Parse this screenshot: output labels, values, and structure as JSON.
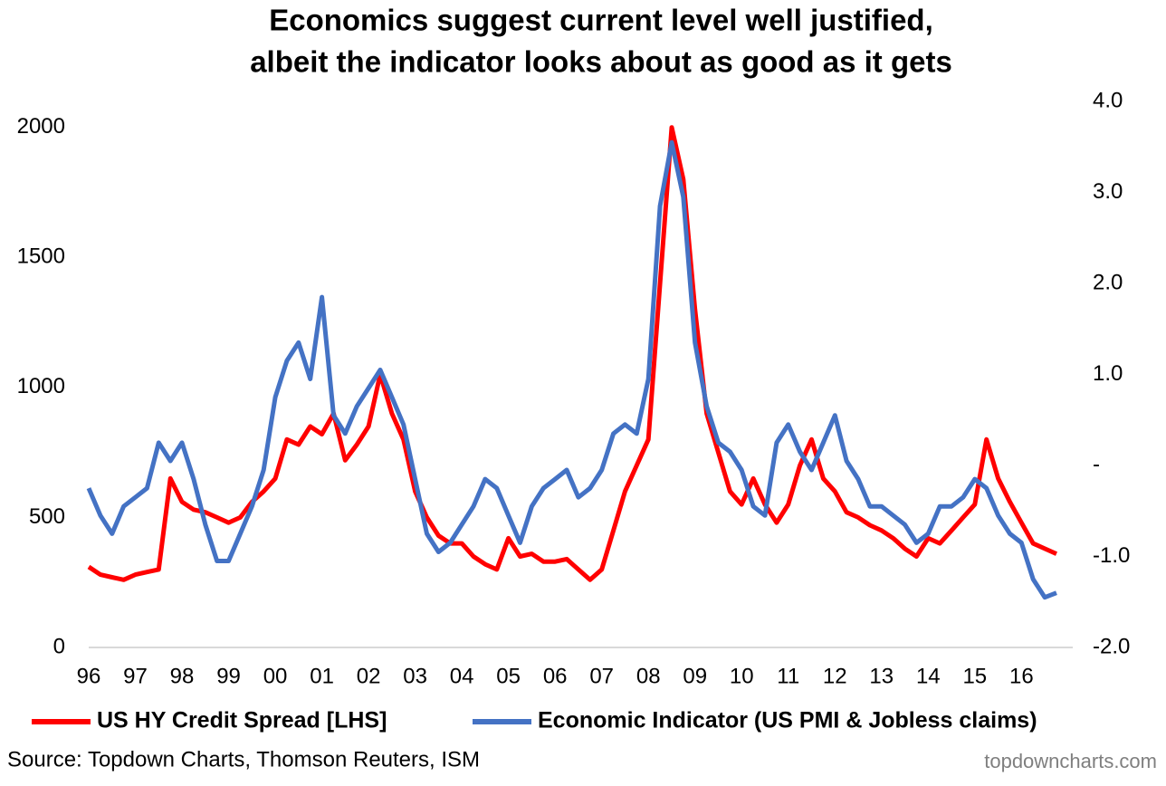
{
  "chart_data": {
    "type": "line",
    "title": [
      "Economics suggest current level well justified,",
      "albeit the indicator looks about as good as it gets"
    ],
    "source": "Source: Topdown Charts, Thomson Reuters, ISM",
    "watermark": "topdowncharts.com",
    "x": [
      1996,
      1996.25,
      1996.5,
      1996.75,
      1997,
      1997.25,
      1997.5,
      1997.75,
      1998,
      1998.25,
      1998.5,
      1998.75,
      1999,
      1999.25,
      1999.5,
      1999.75,
      2000,
      2000.25,
      2000.5,
      2000.75,
      2001,
      2001.25,
      2001.5,
      2001.75,
      2002,
      2002.25,
      2002.5,
      2002.75,
      2003,
      2003.25,
      2003.5,
      2003.75,
      2004,
      2004.25,
      2004.5,
      2004.75,
      2005,
      2005.25,
      2005.5,
      2005.75,
      2006,
      2006.25,
      2006.5,
      2006.75,
      2007,
      2007.25,
      2007.5,
      2007.75,
      2008,
      2008.25,
      2008.5,
      2008.75,
      2009,
      2009.25,
      2009.5,
      2009.75,
      2010,
      2010.25,
      2010.5,
      2010.75,
      2011,
      2011.25,
      2011.5,
      2011.75,
      2012,
      2012.25,
      2012.5,
      2012.75,
      2013,
      2013.25,
      2013.5,
      2013.75,
      2014,
      2014.25,
      2014.5,
      2014.75,
      2015,
      2015.25,
      2015.5,
      2015.75,
      2016,
      2016.25,
      2016.5,
      2016.75
    ],
    "series": [
      {
        "name": "US HY Credit Spread [LHS]",
        "color": "#ff0000",
        "axis": "y",
        "values": [
          310,
          280,
          270,
          260,
          280,
          290,
          300,
          650,
          560,
          530,
          520,
          500,
          480,
          500,
          560,
          600,
          650,
          800,
          780,
          850,
          820,
          900,
          720,
          780,
          850,
          1050,
          900,
          800,
          600,
          500,
          430,
          400,
          400,
          350,
          320,
          300,
          420,
          350,
          360,
          330,
          330,
          340,
          300,
          260,
          300,
          450,
          600,
          700,
          800,
          1400,
          2000,
          1800,
          1300,
          900,
          750,
          600,
          550,
          650,
          550,
          480,
          550,
          700,
          800,
          650,
          600,
          520,
          500,
          470,
          450,
          420,
          380,
          350,
          420,
          400,
          450,
          500,
          550,
          800,
          650,
          560,
          480,
          400,
          380,
          360
        ]
      },
      {
        "name": "Economic Indicator (US PMI & Jobless claims)",
        "color": "#4472c4",
        "axis": "y2",
        "values": [
          -0.25,
          -0.55,
          -0.75,
          -0.45,
          -0.35,
          -0.25,
          0.25,
          0.05,
          0.25,
          -0.15,
          -0.65,
          -1.05,
          -1.05,
          -0.75,
          -0.45,
          -0.05,
          0.75,
          1.15,
          1.35,
          0.95,
          1.85,
          0.55,
          0.35,
          0.65,
          0.85,
          1.05,
          0.75,
          0.45,
          -0.15,
          -0.75,
          -0.95,
          -0.85,
          -0.65,
          -0.45,
          -0.15,
          -0.25,
          -0.55,
          -0.85,
          -0.45,
          -0.25,
          -0.15,
          -0.05,
          -0.35,
          -0.25,
          -0.05,
          0.35,
          0.45,
          0.35,
          0.95,
          2.85,
          3.55,
          2.95,
          1.35,
          0.65,
          0.25,
          0.15,
          -0.05,
          -0.45,
          -0.55,
          0.25,
          0.45,
          0.15,
          -0.05,
          0.25,
          0.55,
          0.05,
          -0.15,
          -0.45,
          -0.45,
          -0.55,
          -0.65,
          -0.85,
          -0.75,
          -0.45,
          -0.45,
          -0.35,
          -0.15,
          -0.25,
          -0.55,
          -0.75,
          -0.85,
          -1.25,
          -1.45,
          -1.4
        ]
      }
    ],
    "xlim": [
      1996,
      2017.1
    ],
    "xticks": [
      {
        "value": 1996,
        "label": "96"
      },
      {
        "value": 1997,
        "label": "97"
      },
      {
        "value": 1998,
        "label": "98"
      },
      {
        "value": 1999,
        "label": "99"
      },
      {
        "value": 2000,
        "label": "00"
      },
      {
        "value": 2001,
        "label": "01"
      },
      {
        "value": 2002,
        "label": "02"
      },
      {
        "value": 2003,
        "label": "03"
      },
      {
        "value": 2004,
        "label": "04"
      },
      {
        "value": 2005,
        "label": "05"
      },
      {
        "value": 2006,
        "label": "06"
      },
      {
        "value": 2007,
        "label": "07"
      },
      {
        "value": 2008,
        "label": "08"
      },
      {
        "value": 2009,
        "label": "09"
      },
      {
        "value": 2010,
        "label": "10"
      },
      {
        "value": 2011,
        "label": "11"
      },
      {
        "value": 2012,
        "label": "12"
      },
      {
        "value": 2013,
        "label": "13"
      },
      {
        "value": 2014,
        "label": "14"
      },
      {
        "value": 2015,
        "label": "15"
      },
      {
        "value": 2016,
        "label": "16"
      }
    ],
    "ylim": [
      0,
      2100
    ],
    "yticks": [
      0,
      500,
      1000,
      1500,
      2000
    ],
    "y2lim": [
      -2,
      4
    ],
    "y2ticks": [
      {
        "value": -2,
        "label": "-2.0"
      },
      {
        "value": -1,
        "label": "-1.0"
      },
      {
        "value": 0,
        "label": "-"
      },
      {
        "value": 1,
        "label": "1.0"
      },
      {
        "value": 2,
        "label": "2.0"
      },
      {
        "value": 3,
        "label": "3.0"
      },
      {
        "value": 4,
        "label": "4.0"
      }
    ],
    "grid": false
  }
}
